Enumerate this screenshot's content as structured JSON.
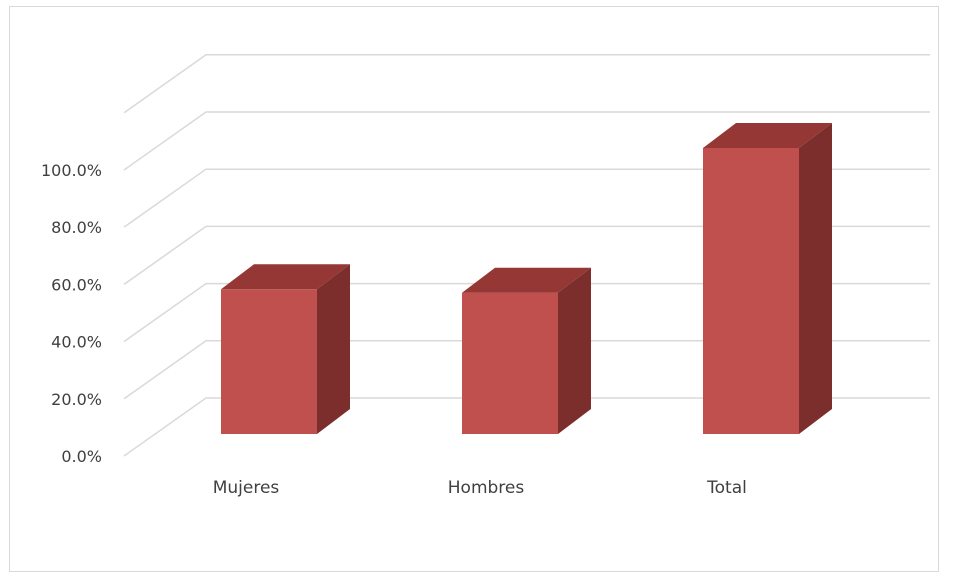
{
  "chart_data": {
    "type": "bar",
    "style": "3d-column",
    "categories": [
      "Mujeres",
      "Hombres",
      "Total"
    ],
    "values": [
      50.6,
      49.4,
      100.0
    ],
    "ylim": [
      0,
      120
    ],
    "y_ticks": [
      0,
      20,
      40,
      60,
      80,
      100
    ],
    "y_tick_labels": [
      "0.0%",
      "20.0%",
      "40.0%",
      "60.0%",
      "80.0%",
      "100.0%"
    ],
    "grid": true,
    "legend": "none",
    "colors": {
      "bar_front": "#c0504d",
      "bar_top": "#953735",
      "bar_side": "#7b2e2c",
      "gridline": "#d9d9d9",
      "text": "#404040"
    }
  }
}
